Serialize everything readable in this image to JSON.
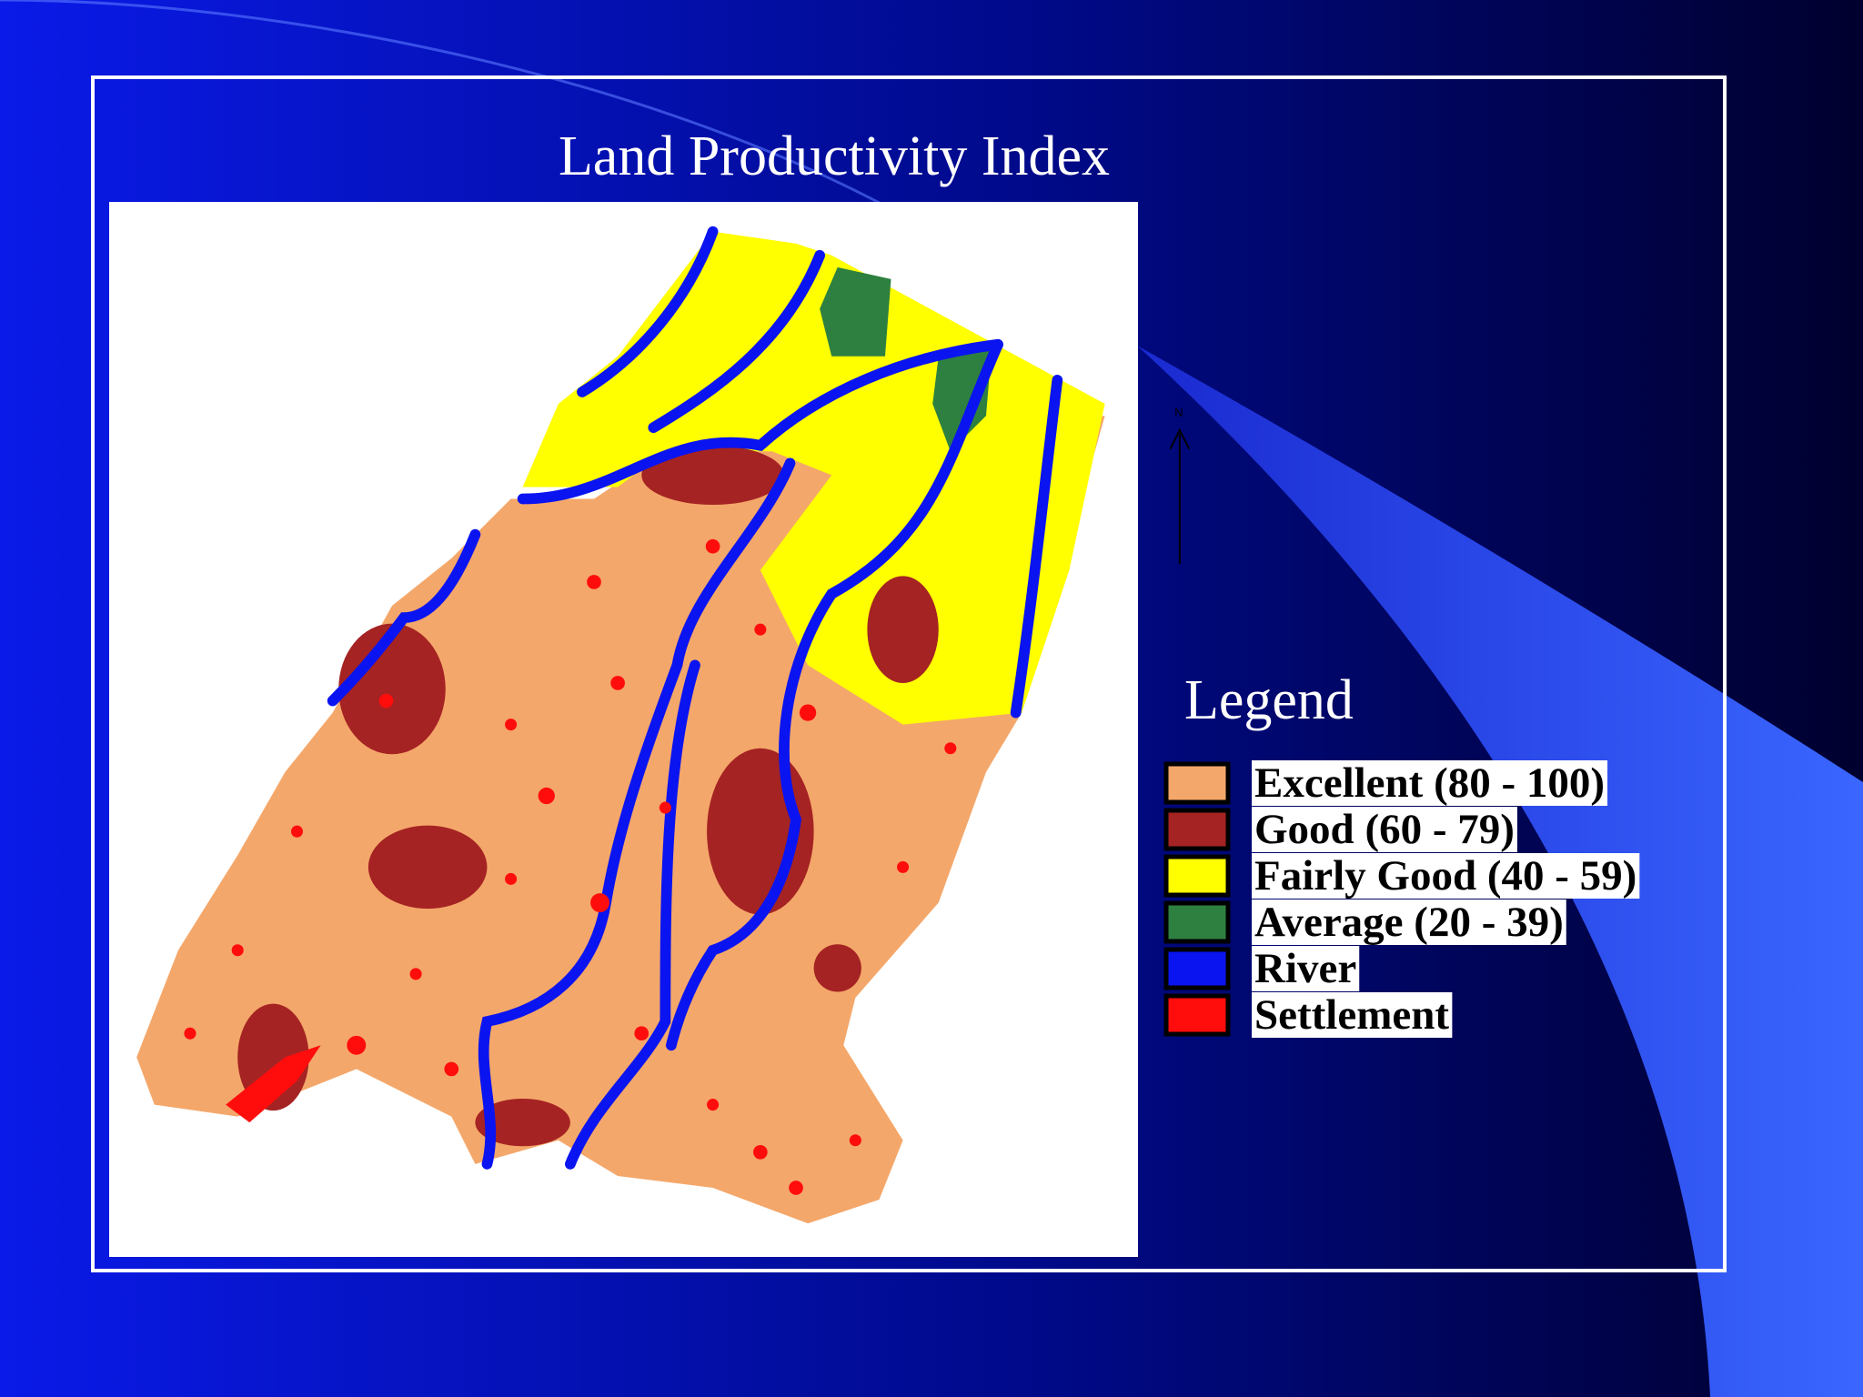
{
  "title": "Land Productivity Index",
  "north_label": "N",
  "legend": {
    "title": "Legend",
    "items": [
      {
        "label": "Excellent (80 - 100)",
        "color": "#f4a76a"
      },
      {
        "label": "Good (60 - 79)",
        "color": "#a52323"
      },
      {
        "label": "Fairly Good (40 - 59)",
        "color": "#ffff00"
      },
      {
        "label": "Average (20 - 39)",
        "color": "#2e8040"
      },
      {
        "label": "River",
        "color": "#0a14f0"
      },
      {
        "label": "Settlement",
        "color": "#ff0d0d"
      }
    ]
  }
}
